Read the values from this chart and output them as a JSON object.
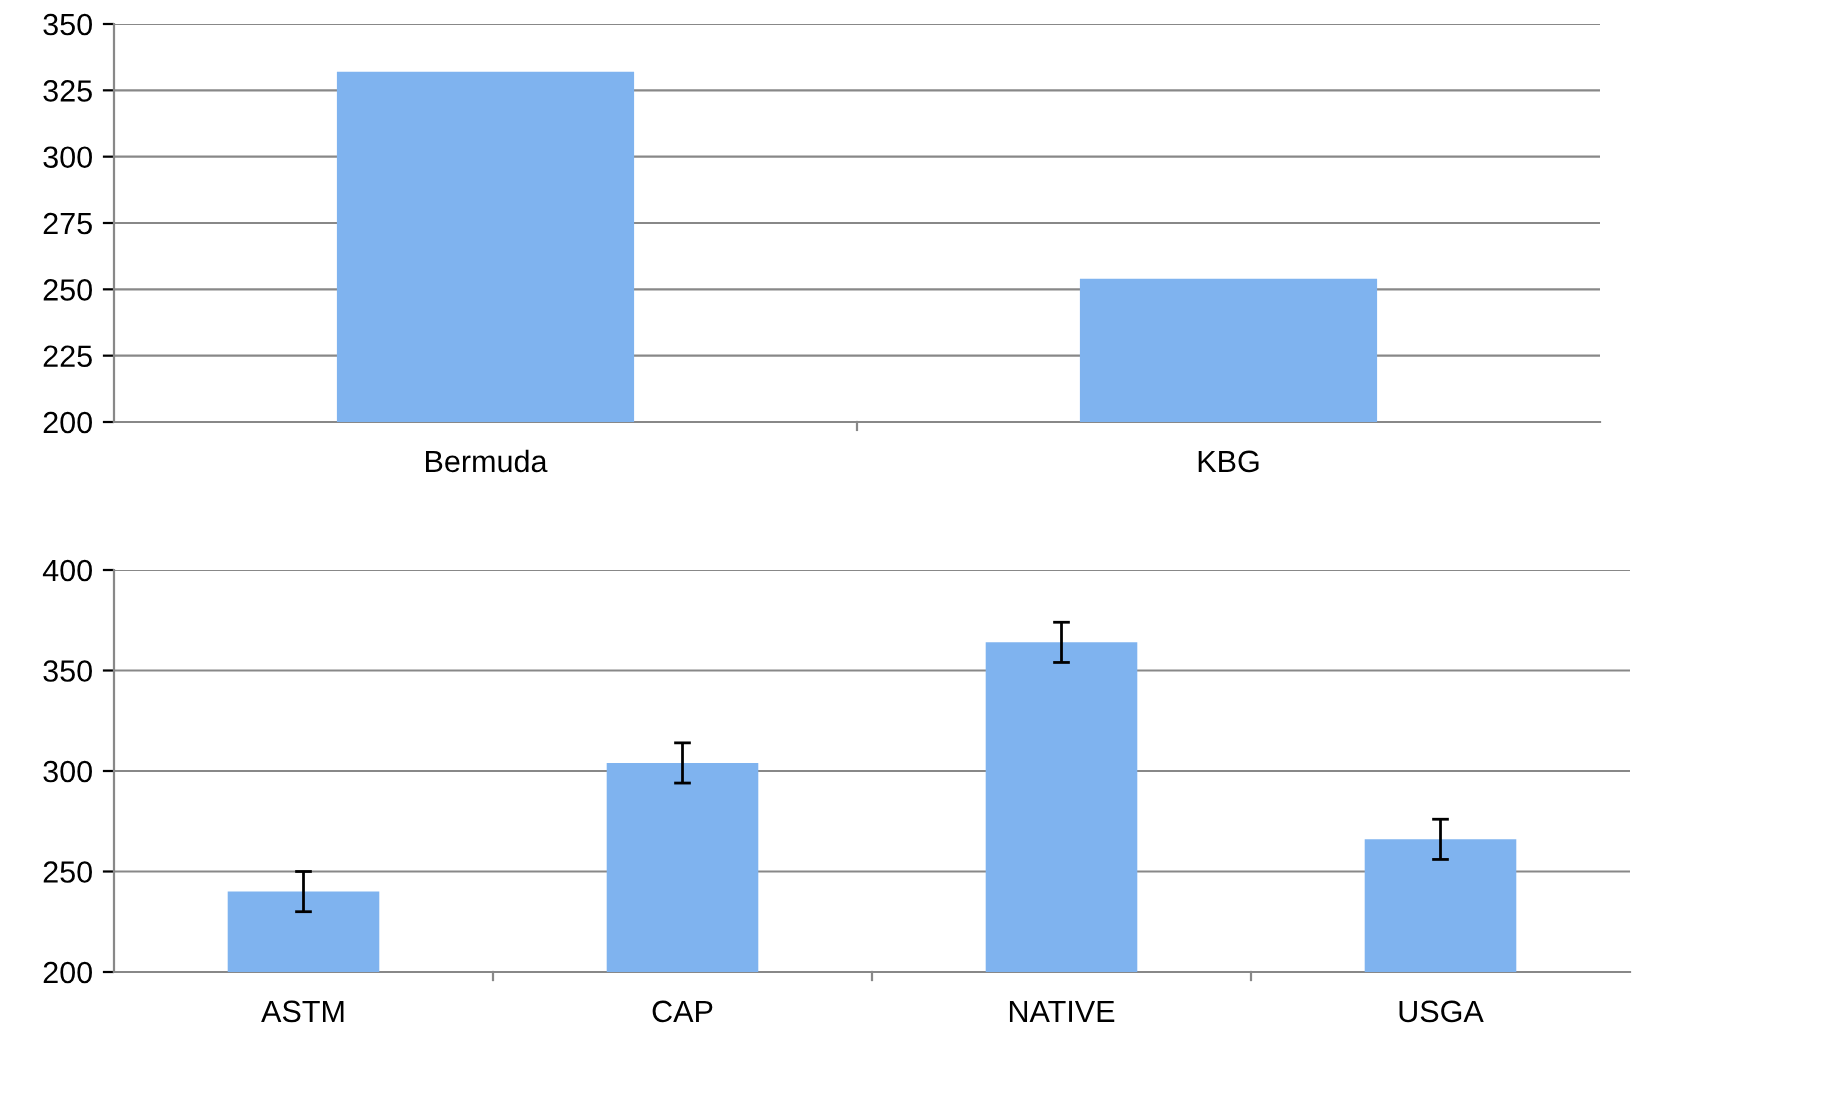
{
  "chart_data": [
    {
      "type": "bar",
      "categories": [
        "Bermuda",
        "KBG"
      ],
      "values": [
        332,
        254
      ],
      "color": "#7fb3ef",
      "ylim": [
        200,
        350
      ],
      "yticks": [
        200,
        225,
        250,
        275,
        300,
        325,
        350
      ],
      "grid": "y"
    },
    {
      "type": "bar",
      "categories": [
        "ASTM",
        "CAP",
        "NATIVE",
        "USGA"
      ],
      "values": [
        240,
        304,
        364,
        266
      ],
      "errors": [
        10,
        10,
        10,
        10
      ],
      "color": "#7fb3ef",
      "ylim": [
        200,
        400
      ],
      "yticks": [
        200,
        250,
        300,
        350,
        400
      ],
      "grid": "y"
    }
  ]
}
